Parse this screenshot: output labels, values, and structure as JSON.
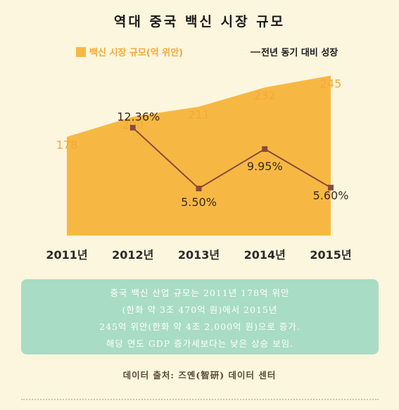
{
  "page": {
    "title": "역대 중국 백신 시장 규모",
    "note_lines": [
      "중국 백신 산업 규모는 2011년 178억 위안",
      "(한화 약 3조 470억 원)에서 2015년",
      "245억 위안(한화 약 4조 2,000억 원)으로 증가.",
      "해당 연도 GDP 증가세보다는 낮은 상승 보임."
    ],
    "source": "데이터 출처: 즈옌(智研) 데이터 센터"
  },
  "chart_data": {
    "type": "area+line",
    "categories": [
      "2011년",
      "2012년",
      "2013년",
      "2014년",
      "2015년"
    ],
    "series": [
      {
        "name": "백신 시장 규모(억 위안)",
        "type": "area",
        "color": "#f7b843",
        "values": [
          178,
          200,
          211,
          232,
          245
        ],
        "labels": [
          "178",
          "200",
          "211",
          "232",
          "245"
        ]
      },
      {
        "name": "전년 동기 대비 성장",
        "type": "line",
        "color": "#8a4a3c",
        "values": [
          null,
          12.36,
          5.5,
          9.95,
          5.6
        ],
        "labels": [
          "",
          "12.36%",
          "5.50%",
          "9.95%",
          "5.60%"
        ]
      }
    ],
    "legend_position": "top",
    "grid": false
  }
}
